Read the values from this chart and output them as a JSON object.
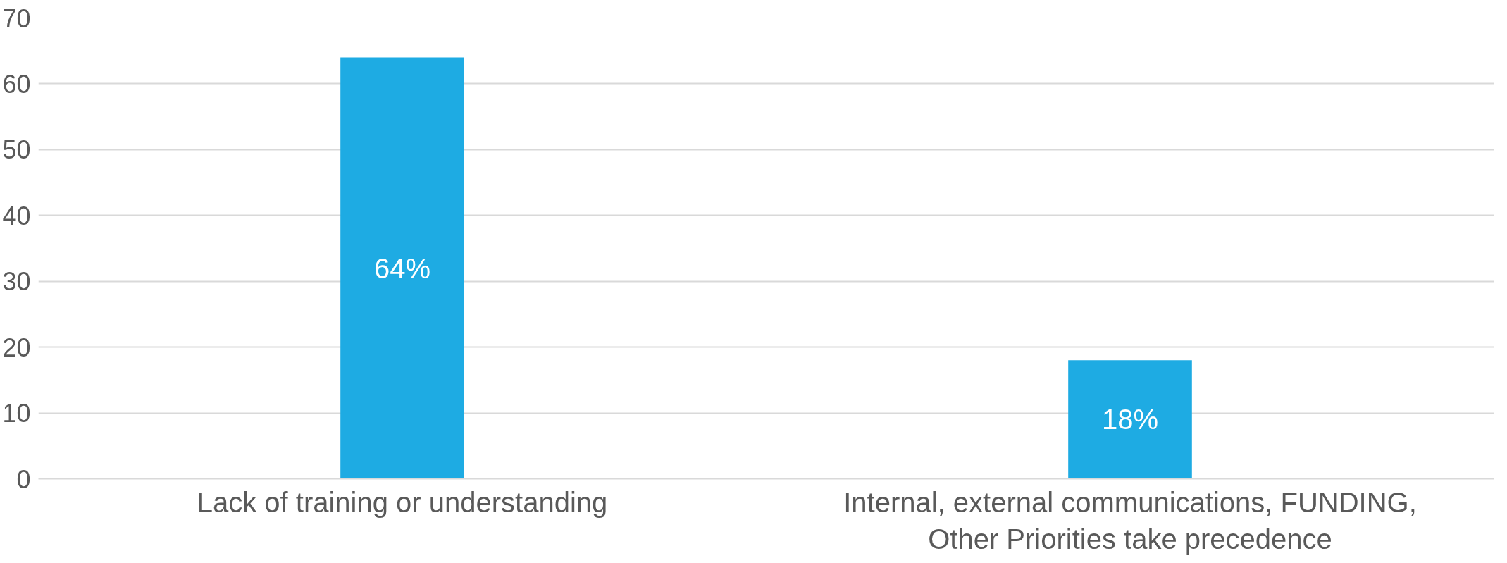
{
  "chart_data": {
    "type": "bar",
    "categories": [
      "Lack of training or understanding",
      "Internal, external communications, FUNDING, Other Priorities take precedence"
    ],
    "values": [
      64,
      18
    ],
    "value_labels": [
      "64%",
      "18%"
    ],
    "color": "#1eabe3",
    "ylim": [
      0,
      70
    ],
    "yticks": [
      0,
      10,
      20,
      30,
      40,
      50,
      60,
      70
    ],
    "grid": "y"
  }
}
